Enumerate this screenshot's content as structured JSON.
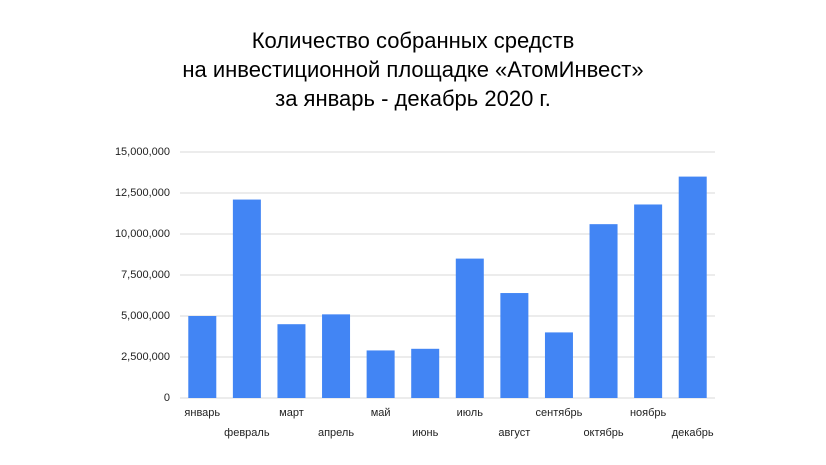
{
  "chart_data": {
    "type": "bar",
    "title": [
      "Количество собранных средств",
      "на инвестиционной площадке «АтомИнвест»",
      "за январь - декабрь 2020 г."
    ],
    "categories": [
      "январь",
      "февраль",
      "март",
      "апрель",
      "май",
      "июнь",
      "июль",
      "август",
      "сентябрь",
      "октябрь",
      "ноябрь",
      "декабрь"
    ],
    "values": [
      5000000,
      12100000,
      4500000,
      5100000,
      2900000,
      3000000,
      8500000,
      6400000,
      4000000,
      10600000,
      11800000,
      13500000
    ],
    "color": "#4285f4",
    "ylim": [
      0,
      15000000
    ],
    "yticks": [
      0,
      {
        "value": 2500000,
        "label": "2,500,000"
      },
      {
        "value": 5000000,
        "label": "5,000,000"
      },
      {
        "value": 7500000,
        "label": "7,500,000"
      },
      {
        "value": 10000000,
        "label": "10,000,000"
      },
      {
        "value": 12500000,
        "label": "12,500,000"
      },
      {
        "value": 15000000,
        "label": "15,000,000"
      }
    ],
    "grid": true
  }
}
